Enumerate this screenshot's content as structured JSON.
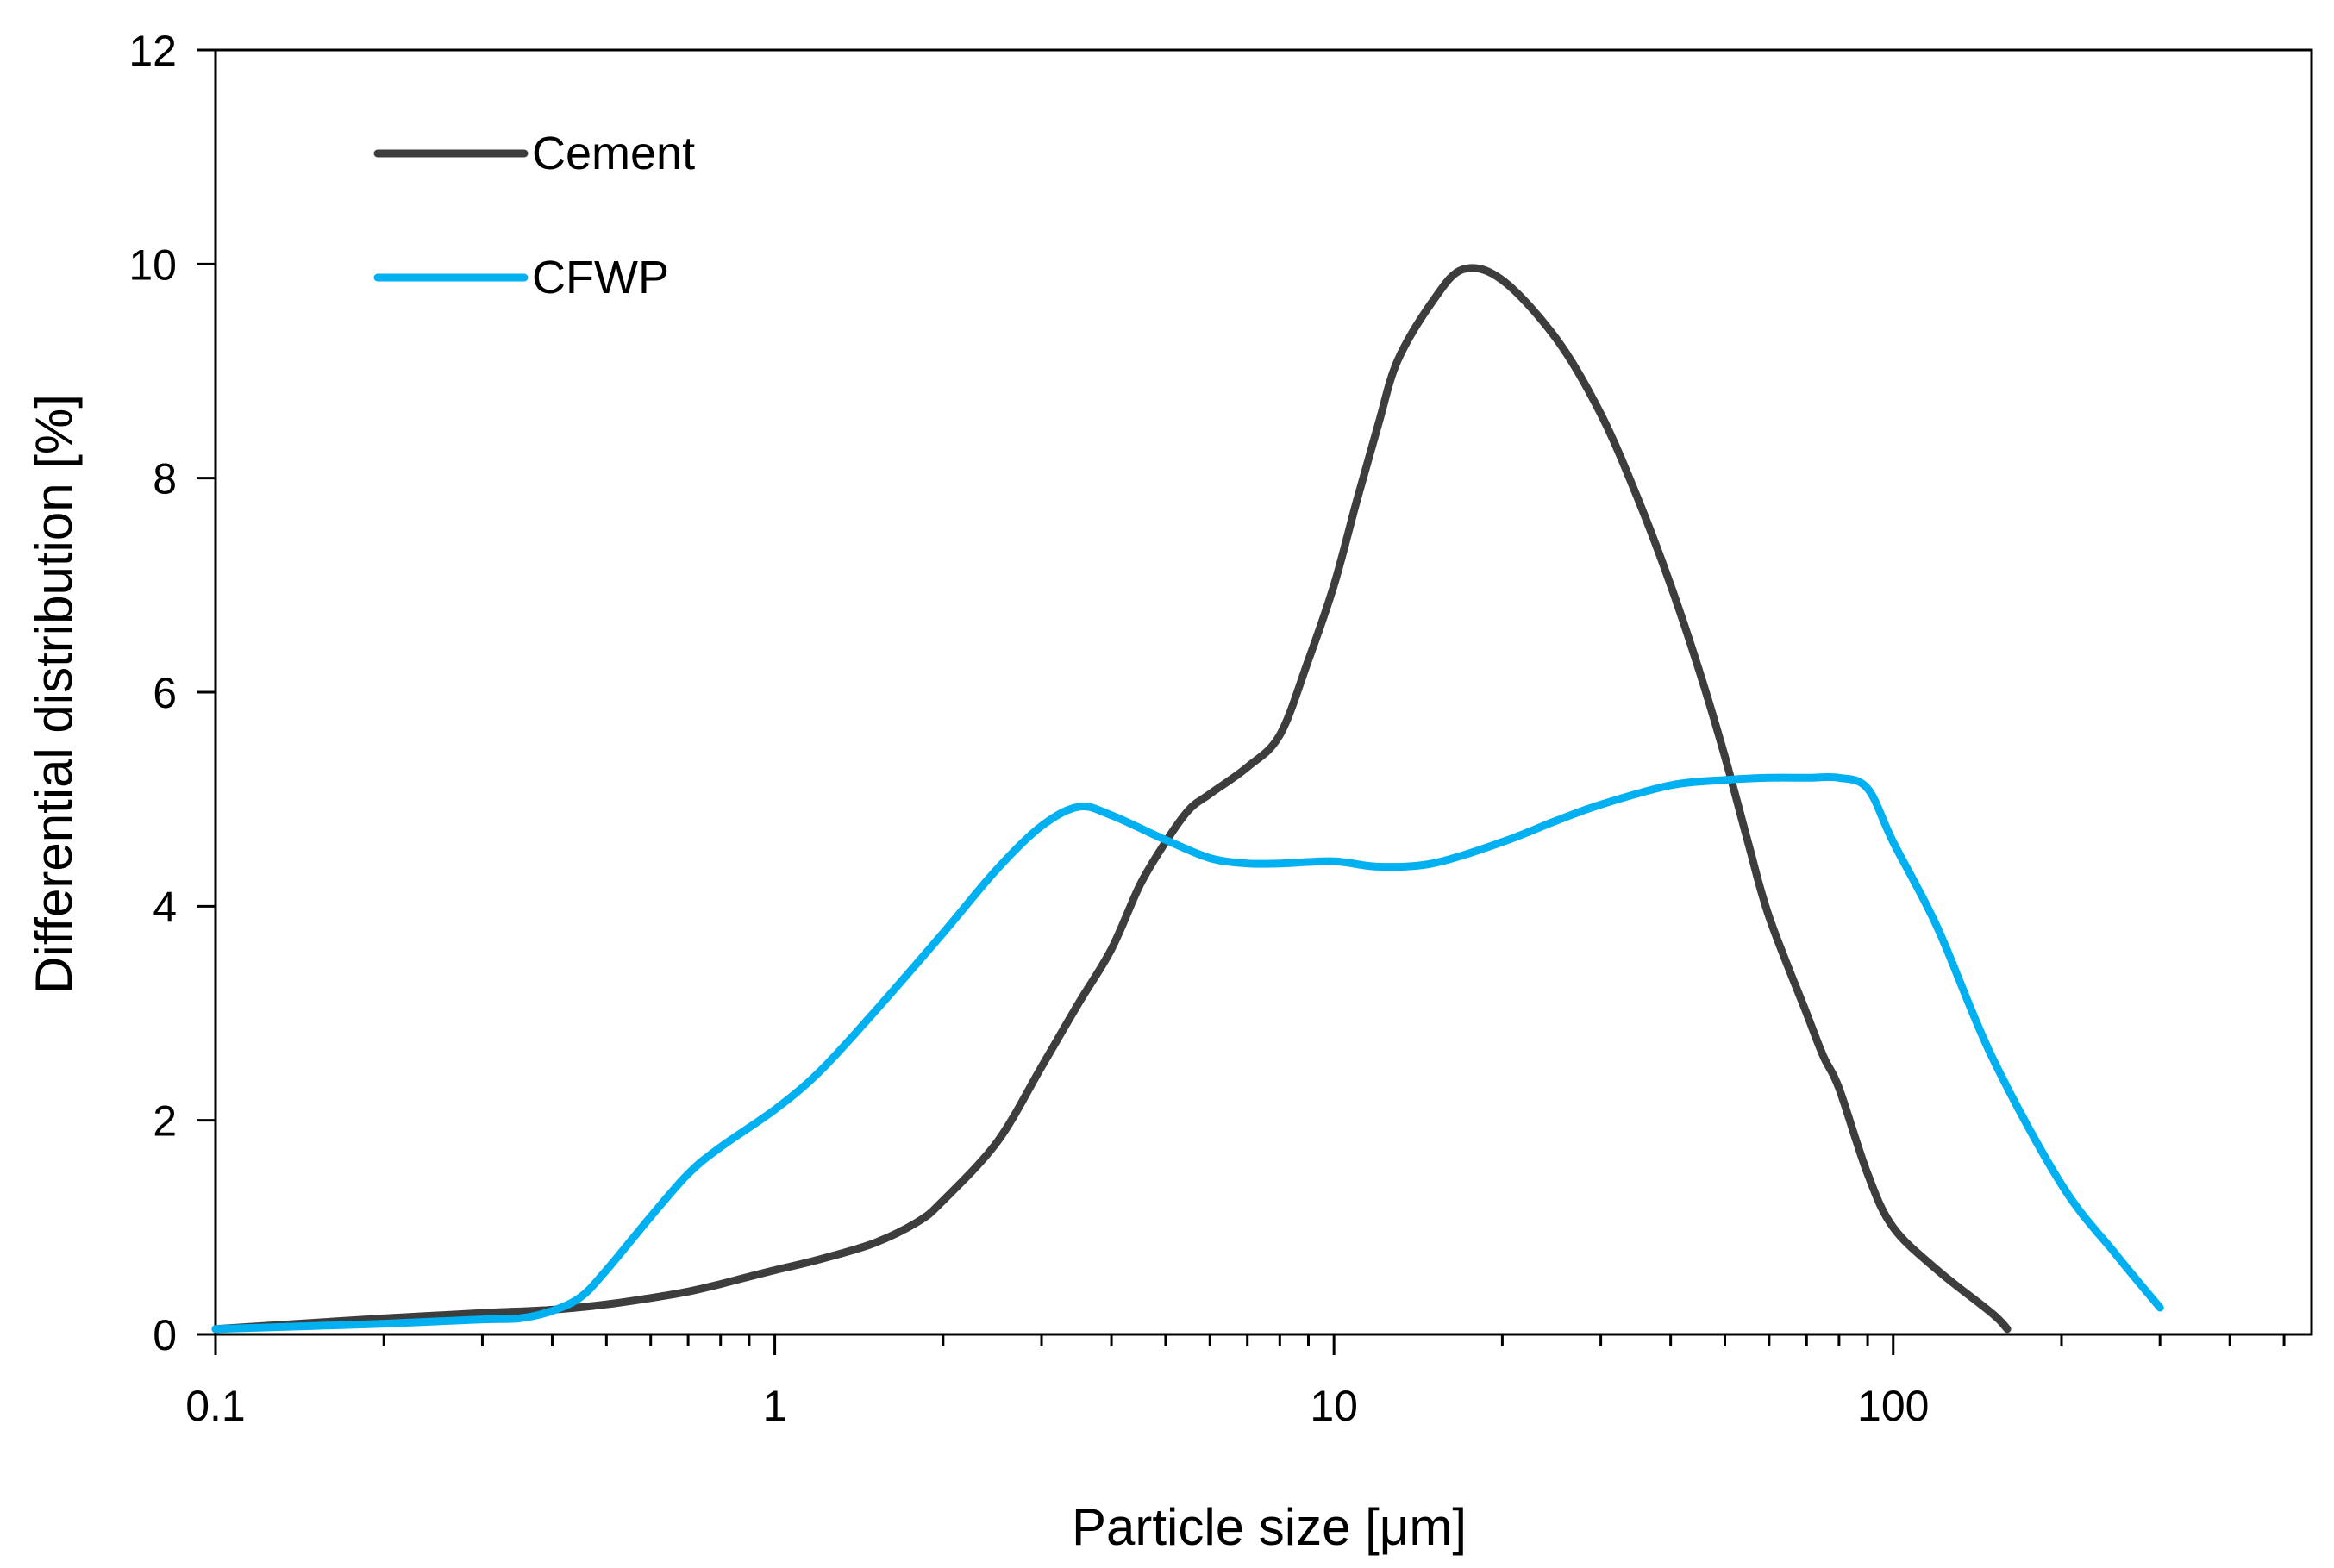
{
  "chart_data": {
    "type": "line",
    "title": "",
    "xlabel": "Particle size [μm]",
    "ylabel": "Differential distribution [%]",
    "xscale": "log",
    "xlim": [
      0.1,
      560
    ],
    "ylim": [
      0,
      12
    ],
    "x_tick_labels": [
      {
        "value": 0.1,
        "label": "0.1"
      },
      {
        "value": 1,
        "label": "1"
      },
      {
        "value": 10,
        "label": "10"
      },
      {
        "value": 100,
        "label": "100"
      }
    ],
    "y_tick_labels": [
      {
        "value": 0,
        "label": "0"
      },
      {
        "value": 2,
        "label": "2"
      },
      {
        "value": 4,
        "label": "4"
      },
      {
        "value": 6,
        "label": "6"
      },
      {
        "value": 8,
        "label": "8"
      },
      {
        "value": 10,
        "label": "10"
      },
      {
        "value": 12,
        "label": "12"
      }
    ],
    "grid": false,
    "legend_position": "top-left",
    "series": [
      {
        "name": "Cement",
        "color": "#3d3d3d",
        "x": [
          0.1,
          0.2,
          0.3,
          0.4,
          0.5,
          0.6,
          0.7,
          0.8,
          0.9,
          1.0,
          1.2,
          1.5,
          1.8,
          2.0,
          2.5,
          3.0,
          3.5,
          4.0,
          4.5,
          5.0,
          5.5,
          6.0,
          7.0,
          8.0,
          9.0,
          10,
          11,
          12,
          13,
          15,
          17,
          20,
          25,
          30,
          35,
          40,
          45,
          50,
          55,
          60,
          70,
          75,
          80,
          90,
          100,
          120,
          150,
          160
        ],
        "y": [
          0.05,
          0.15,
          0.2,
          0.23,
          0.28,
          0.34,
          0.4,
          0.47,
          0.54,
          0.6,
          0.7,
          0.85,
          1.05,
          1.25,
          1.8,
          2.5,
          3.1,
          3.6,
          4.2,
          4.6,
          4.9,
          5.05,
          5.3,
          5.6,
          6.3,
          7.0,
          7.8,
          8.5,
          9.1,
          9.65,
          9.95,
          9.85,
          9.3,
          8.6,
          7.8,
          7.0,
          6.2,
          5.4,
          4.6,
          3.9,
          3.0,
          2.6,
          2.3,
          1.5,
          1.0,
          0.6,
          0.2,
          0.05
        ]
      },
      {
        "name": "CFWP",
        "color": "#00b0f0",
        "x": [
          0.1,
          0.2,
          0.3,
          0.35,
          0.4,
          0.45,
          0.5,
          0.6,
          0.7,
          0.8,
          1.0,
          1.2,
          1.5,
          2.0,
          2.5,
          3.0,
          3.5,
          4.0,
          5.0,
          6.0,
          7.0,
          8.0,
          10,
          12,
          15,
          20,
          25,
          30,
          40,
          50,
          60,
          70,
          80,
          90,
          100,
          120,
          150,
          200,
          250,
          300
        ],
        "y": [
          0.05,
          0.1,
          0.14,
          0.15,
          0.22,
          0.35,
          0.6,
          1.1,
          1.5,
          1.75,
          2.1,
          2.45,
          3.0,
          3.75,
          4.35,
          4.75,
          4.93,
          4.85,
          4.62,
          4.45,
          4.4,
          4.4,
          4.42,
          4.37,
          4.4,
          4.6,
          4.8,
          4.95,
          5.13,
          5.18,
          5.2,
          5.2,
          5.2,
          5.1,
          4.6,
          3.8,
          2.6,
          1.4,
          0.75,
          0.25
        ]
      }
    ]
  }
}
